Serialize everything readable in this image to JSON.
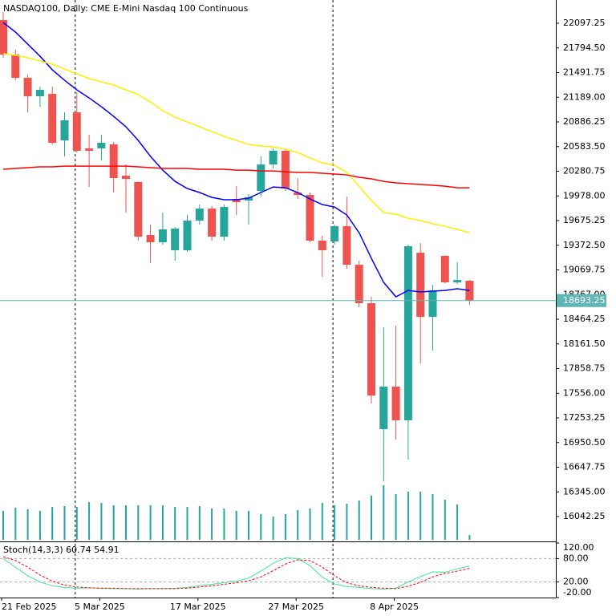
{
  "chart_data": [
    {
      "type": "candlestick",
      "title": "NASDAQ100, Daily:  CME E-Mini Nasdaq 100 Continuous",
      "x": [
        "21 Feb 2025",
        null,
        null,
        null,
        null,
        null,
        null,
        null,
        "5 Mar 2025",
        null,
        null,
        null,
        null,
        null,
        null,
        null,
        "17 Mar 2025",
        null,
        null,
        null,
        null,
        null,
        null,
        null,
        "27 Mar 2025",
        null,
        null,
        null,
        null,
        null,
        null,
        null,
        "8 Apr 2025",
        null,
        null,
        null,
        null,
        null,
        null
      ],
      "open": [
        22136,
        21713,
        21427,
        21201,
        21230,
        20660,
        21004,
        20561,
        20561,
        20610,
        20226,
        20148,
        19498,
        19409,
        19311,
        19311,
        19675,
        19823,
        19478,
        19941,
        19921,
        20039,
        20364,
        20532,
        20020,
        19990,
        19429,
        19419,
        19606,
        19133,
        18661,
        17115,
        17637,
        17223,
        19281,
        18493,
        19242,
        18917,
        18936
      ],
      "high": [
        22235,
        21772,
        21467,
        21319,
        21319,
        21004,
        21250,
        20728,
        20728,
        20640,
        20364,
        20157,
        19626,
        19773,
        19596,
        19744,
        19872,
        19852,
        19872,
        20098,
        20000,
        20463,
        20561,
        20561,
        20197,
        20020,
        19488,
        19626,
        19970,
        19183,
        18740,
        18365,
        18385,
        19380,
        19399,
        18887,
        19251,
        19163,
        18946
      ],
      "low": [
        21674,
        21398,
        21004,
        21073,
        20610,
        20463,
        20512,
        20088,
        20413,
        20020,
        19773,
        19429,
        19153,
        19380,
        19183,
        19291,
        19626,
        19429,
        19429,
        19744,
        19626,
        19970,
        20315,
        20039,
        19941,
        19409,
        18986,
        19380,
        19084,
        18612,
        17430,
        16475,
        16987,
        16741,
        17922,
        18080,
        18907,
        18897,
        18641
      ],
      "close": [
        21713,
        21427,
        21201,
        21280,
        20630,
        20906,
        20532,
        20532,
        20630,
        20197,
        20187,
        19478,
        19409,
        19567,
        19577,
        19675,
        19823,
        19478,
        19842,
        19901,
        19960,
        20364,
        20532,
        20069,
        19990,
        19429,
        19311,
        19606,
        19133,
        18661,
        17528,
        17637,
        17223,
        19360,
        18493,
        18818,
        18917,
        18946,
        18693.25
      ],
      "up_color": "#26a69a",
      "down_color": "#ef5350",
      "lines": [
        {
          "color": "#0000ff",
          "values": [
            22107,
            21989,
            21841,
            21693,
            21526,
            21398,
            21280,
            21181,
            21073,
            20955,
            20827,
            20660,
            20463,
            20295,
            20157,
            20069,
            20020,
            19960,
            19931,
            19931,
            19951,
            20020,
            20088,
            20078,
            20020,
            19941,
            19872,
            19842,
            19744,
            19527,
            19212,
            18917,
            18740,
            18818,
            18799,
            18809,
            18818,
            18838,
            18818
          ]
        },
        {
          "color": "#ffee00",
          "values": [
            21723,
            21703,
            21674,
            21634,
            21595,
            21536,
            21477,
            21418,
            21378,
            21339,
            21280,
            21221,
            21132,
            21024,
            20945,
            20886,
            20827,
            20768,
            20709,
            20660,
            20610,
            20591,
            20581,
            20551,
            20512,
            20443,
            20384,
            20354,
            20266,
            20098,
            19921,
            19773,
            19754,
            19704,
            19675,
            19636,
            19606,
            19567,
            19527
          ]
        },
        {
          "color": "#ff0000",
          "values": [
            20305,
            20315,
            20325,
            20335,
            20335,
            20344,
            20344,
            20344,
            20344,
            20344,
            20344,
            20335,
            20325,
            20315,
            20315,
            20315,
            20305,
            20305,
            20305,
            20295,
            20295,
            20285,
            20285,
            20275,
            20266,
            20266,
            20256,
            20246,
            20236,
            20207,
            20187,
            20157,
            20138,
            20128,
            20118,
            20108,
            20098,
            20078,
            20078
          ]
        }
      ],
      "volume": {
        "color": "#26a69a",
        "values": [
          36,
          40,
          38,
          36,
          41,
          42,
          41,
          47,
          46,
          43,
          43,
          43,
          43,
          43,
          41,
          41,
          42,
          39,
          39,
          36,
          36,
          32,
          29,
          32,
          37,
          39,
          46,
          43,
          45,
          49,
          55,
          68,
          57,
          60,
          60,
          57,
          50,
          44,
          6
        ]
      },
      "ylim": [
        15737.4,
        22382.8
      ],
      "yticks": [
        {
          "value": 22097.25,
          "label": "22097.25"
        },
        {
          "value": 21794.5,
          "label": "21794.50"
        },
        {
          "value": 21491.75,
          "label": "21491.75"
        },
        {
          "value": 21189,
          "label": "21189.00"
        },
        {
          "value": 20886.25,
          "label": "20886.25"
        },
        {
          "value": 20583.5,
          "label": "20583.50"
        },
        {
          "value": 20280.75,
          "label": "20280.75"
        },
        {
          "value": 19978,
          "label": "19978.00"
        },
        {
          "value": 19675.25,
          "label": "19675.25"
        },
        {
          "value": 19372.5,
          "label": "19372.50"
        },
        {
          "value": 19069.75,
          "label": "19069.75"
        },
        {
          "value": 18767,
          "label": "18767.00"
        },
        {
          "value": 18464.25,
          "label": "18464.25"
        },
        {
          "value": 18161.5,
          "label": "18161.50"
        },
        {
          "value": 17858.75,
          "label": "17858.75"
        },
        {
          "value": 17556,
          "label": "17556.00"
        },
        {
          "value": 17253.25,
          "label": "17253.25"
        },
        {
          "value": 16950.5,
          "label": "16950.50"
        },
        {
          "value": 16647.75,
          "label": "16647.75"
        },
        {
          "value": 16345,
          "label": "16345.00"
        },
        {
          "value": 16042.25,
          "label": "16042.25"
        }
      ],
      "last_price": 18693.25,
      "last_price_color": "#5fb6b6"
    },
    {
      "type": "line",
      "title": "Stoch(14,3,3) 60.74 54.91",
      "series": [
        {
          "color": "#3ce6a0",
          "dashed": false,
          "values": [
            80,
            58,
            36,
            20,
            10,
            6,
            4,
            5,
            4,
            3,
            3,
            2,
            3,
            3,
            4,
            6,
            10,
            14,
            18,
            22,
            30,
            48,
            68,
            82,
            80,
            62,
            32,
            15,
            8,
            6,
            3,
            2,
            4,
            20,
            34,
            46,
            45,
            54,
            60.74
          ]
        },
        {
          "color": "#ff0000",
          "dashed": true,
          "values": [
            85,
            75,
            58,
            38,
            22,
            12,
            7,
            5,
            4,
            4,
            3,
            3,
            3,
            3,
            3,
            4,
            7,
            10,
            14,
            18,
            23,
            33,
            49,
            66,
            77,
            75,
            58,
            36,
            18,
            10,
            6,
            4,
            3,
            9,
            19,
            33,
            42,
            48,
            54.91
          ]
        }
      ],
      "levels": [
        80,
        20
      ],
      "ylim": [
        -20,
        120
      ],
      "yticks": [
        {
          "value": 120,
          "label": "120.00"
        },
        {
          "value": 80,
          "label": "80.00"
        },
        {
          "value": 20,
          "label": "20.00"
        },
        {
          "value": -20,
          "label": "-20.00"
        }
      ]
    }
  ]
}
